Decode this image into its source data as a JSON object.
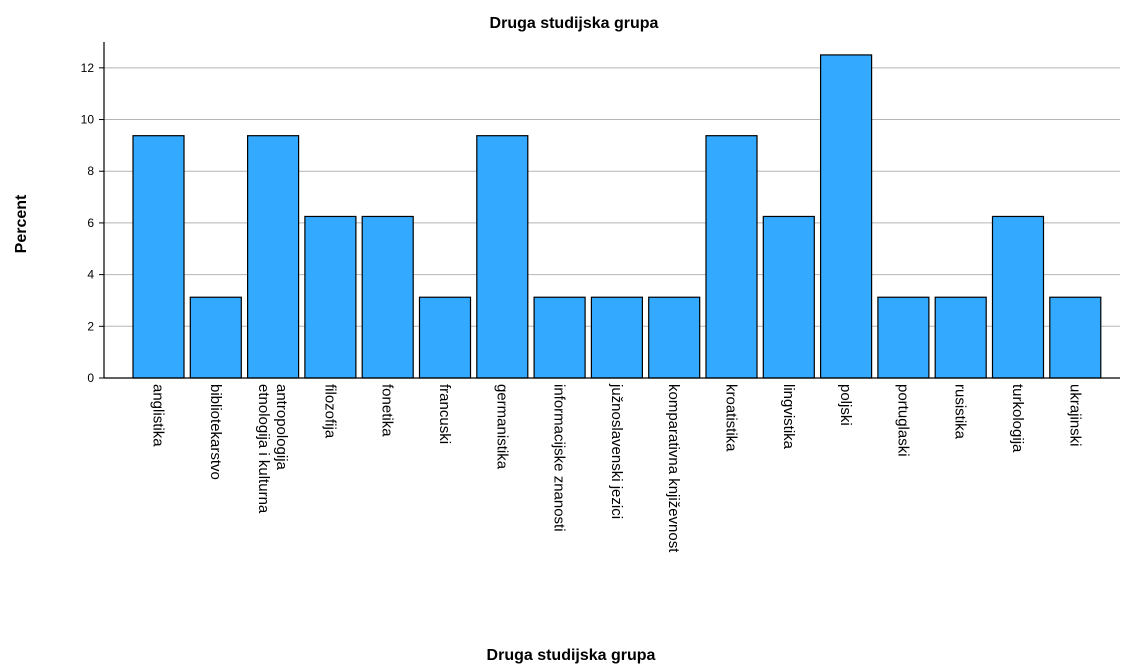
{
  "chart_data": {
    "type": "bar",
    "title": "Druga studijska grupa",
    "xlabel": "Druga studijska grupa",
    "ylabel": "Percent",
    "ylim": [
      0,
      13
    ],
    "yticks": [
      0,
      2,
      4,
      6,
      8,
      10,
      12
    ],
    "grid": true,
    "bar_color": "#33aaff",
    "bar_edge_color": "#000000",
    "categories": [
      "anglistika",
      "bibliotekarstvo",
      "etnologija i kulturna antropologija",
      "filozofija",
      "fonetika",
      "francuski",
      "germanistika",
      "informacijske znanosti",
      "južnoslavenski jezici",
      "komparativna književnost",
      "kroatistika",
      "lingvistika",
      "poljski",
      "portuglaski",
      "rusistika",
      "turkologija",
      "ukrajinski"
    ],
    "category_label_lines": [
      [
        "anglistika"
      ],
      [
        "bibliotekarstvo"
      ],
      [
        "etnologija i kulturna",
        "antropologija"
      ],
      [
        "filozofija"
      ],
      [
        "fonetika"
      ],
      [
        "francuski"
      ],
      [
        "germanistika"
      ],
      [
        "informacijske znanosti"
      ],
      [
        "južnoslavenski jezici"
      ],
      [
        "komparativna književnost"
      ],
      [
        "kroatistika"
      ],
      [
        "lingvistika"
      ],
      [
        "poljski"
      ],
      [
        "portuglaski"
      ],
      [
        "rusistika"
      ],
      [
        "turkologija"
      ],
      [
        "ukrajinski"
      ]
    ],
    "values": [
      9.375,
      3.125,
      9.375,
      6.25,
      6.25,
      3.125,
      9.375,
      3.125,
      3.125,
      3.125,
      9.375,
      6.25,
      12.5,
      3.125,
      3.125,
      6.25,
      3.125
    ]
  }
}
